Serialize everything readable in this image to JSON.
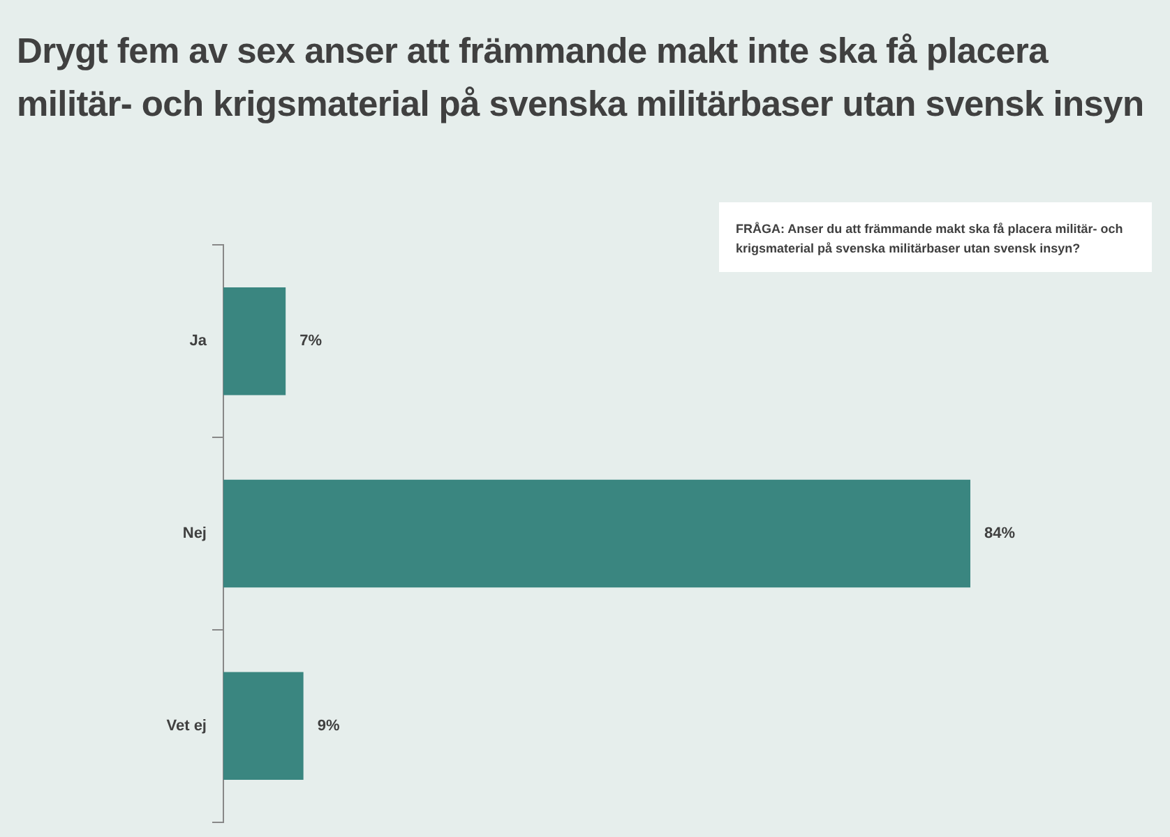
{
  "chart_data": {
    "type": "bar",
    "orientation": "horizontal",
    "title": "Drygt fem av sex anser att främmande makt inte ska få placera militär- och krigsmaterial på svenska militärbaser utan svensk insyn",
    "annotations": [
      "FRÅGA: Anser du att främmande makt ska få placera militär- och krigsmaterial på svenska militärbaser utan svensk insyn?"
    ],
    "categories": [
      "Ja",
      "Nej",
      "Vet ej"
    ],
    "values": [
      7,
      84,
      9
    ],
    "color": "#3a8680",
    "data_labels": true,
    "value_labels": [
      "7%",
      "84%",
      "9%"
    ],
    "grid": false,
    "legend": false
  }
}
